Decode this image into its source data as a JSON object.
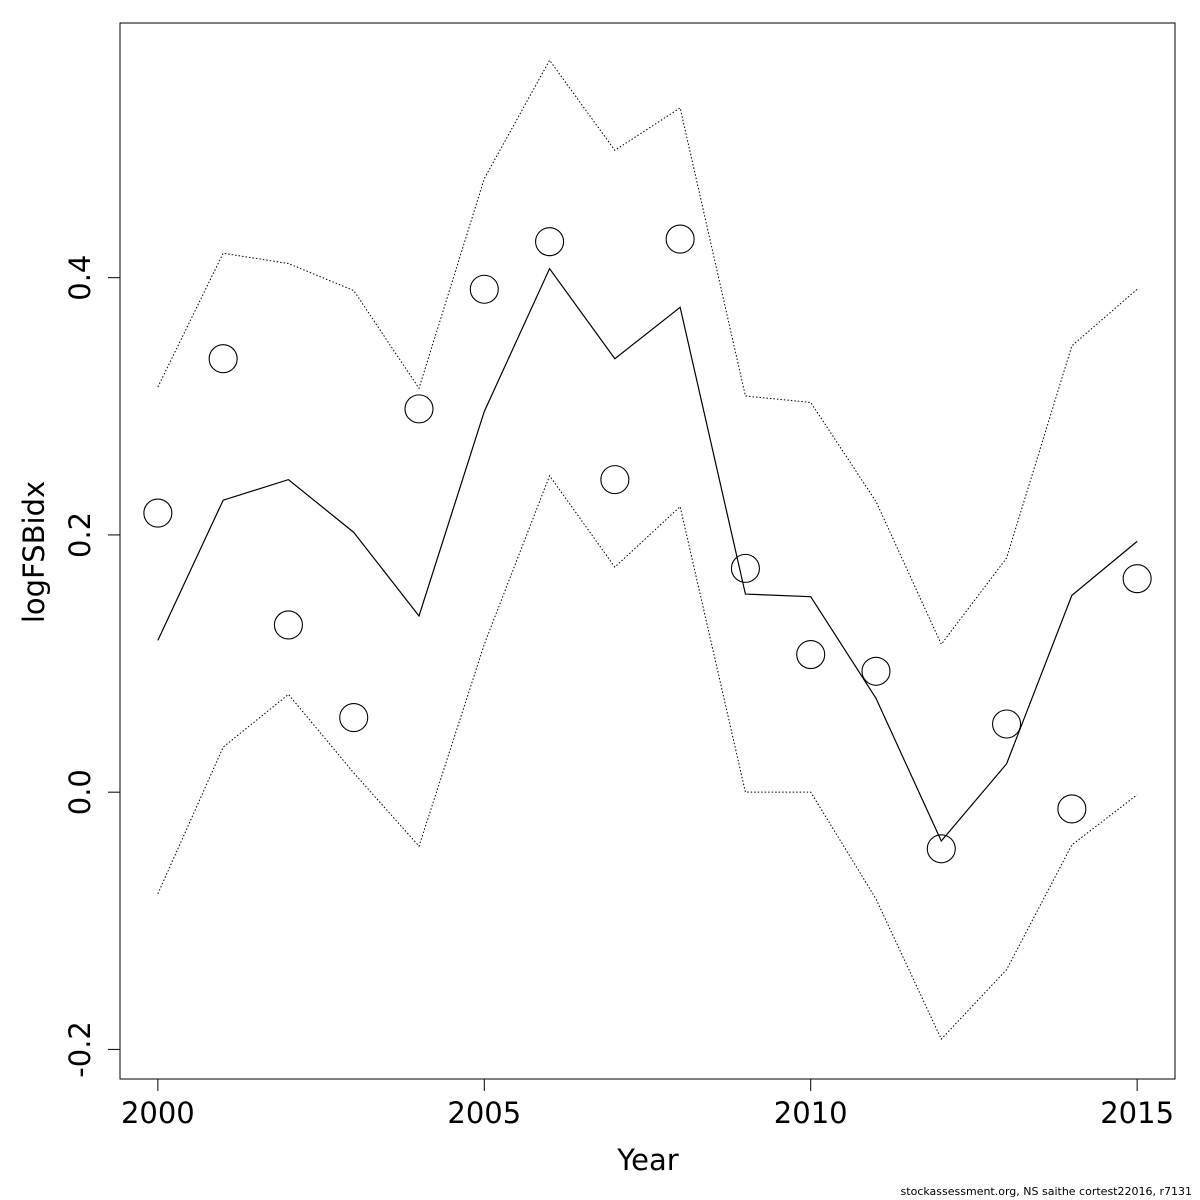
{
  "chart_data": {
    "type": "line",
    "xlabel": "Year",
    "ylabel": "logFSBidx",
    "xlim": [
      1999.42,
      2015.58
    ],
    "ylim": [
      -0.223,
      0.598
    ],
    "x_ticks": [
      2000,
      2005,
      2010,
      2015
    ],
    "y_ticks": [
      -0.2,
      0.0,
      0.2,
      0.4
    ],
    "grid": false,
    "legend": "none",
    "x": [
      2000,
      2001,
      2002,
      2003,
      2004,
      2005,
      2006,
      2007,
      2008,
      2009,
      2010,
      2011,
      2012,
      2013,
      2014,
      2015
    ],
    "observed": [
      0.217,
      0.337,
      0.13,
      0.058,
      0.298,
      0.391,
      0.428,
      0.243,
      0.43,
      0.174,
      0.107,
      0.094,
      -0.044,
      0.053,
      -0.013,
      0.166
    ],
    "fitted": [
      0.118,
      0.227,
      0.243,
      0.202,
      0.137,
      0.296,
      0.407,
      0.337,
      0.377,
      0.154,
      0.152,
      0.073,
      -0.038,
      0.022,
      0.153,
      0.195
    ],
    "upper": [
      0.315,
      0.419,
      0.411,
      0.39,
      0.314,
      0.477,
      0.569,
      0.499,
      0.532,
      0.308,
      0.303,
      0.226,
      0.115,
      0.182,
      0.347,
      0.391
    ],
    "lower": [
      -0.079,
      0.035,
      0.076,
      0.015,
      -0.042,
      0.115,
      0.246,
      0.175,
      0.222,
      0.0,
      0.0,
      -0.083,
      -0.192,
      -0.138,
      -0.041,
      -0.002
    ]
  },
  "footer": "stockassessment.org, NS saithe cortest22016, r7131"
}
